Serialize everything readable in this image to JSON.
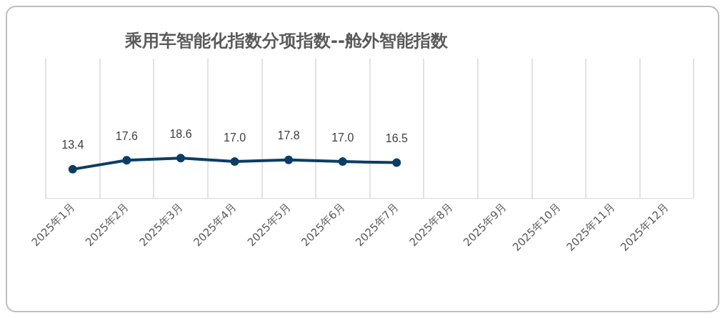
{
  "chart_data": {
    "type": "line",
    "title": "乘用车智能化指数分项指数--舱外智能指数",
    "categories": [
      "2025年1月",
      "2025年2月",
      "2025年3月",
      "2025年4月",
      "2025年5月",
      "2025年6月",
      "2025年7月",
      "2025年8月",
      "2025年9月",
      "2025年10月",
      "2025年11月",
      "2025年12月"
    ],
    "series": [
      {
        "color": "#0b3d66",
        "values": [
          13.4,
          17.6,
          18.6,
          17.0,
          17.8,
          17.0,
          16.5,
          null,
          null,
          null,
          null,
          null
        ],
        "value_labels": [
          "13.4",
          "17.6",
          "18.6",
          "17.0",
          "17.8",
          "17.0",
          "16.5",
          null,
          null,
          null,
          null,
          null
        ]
      }
    ],
    "grid": "x",
    "marker": "circle",
    "line_style": "solid"
  }
}
